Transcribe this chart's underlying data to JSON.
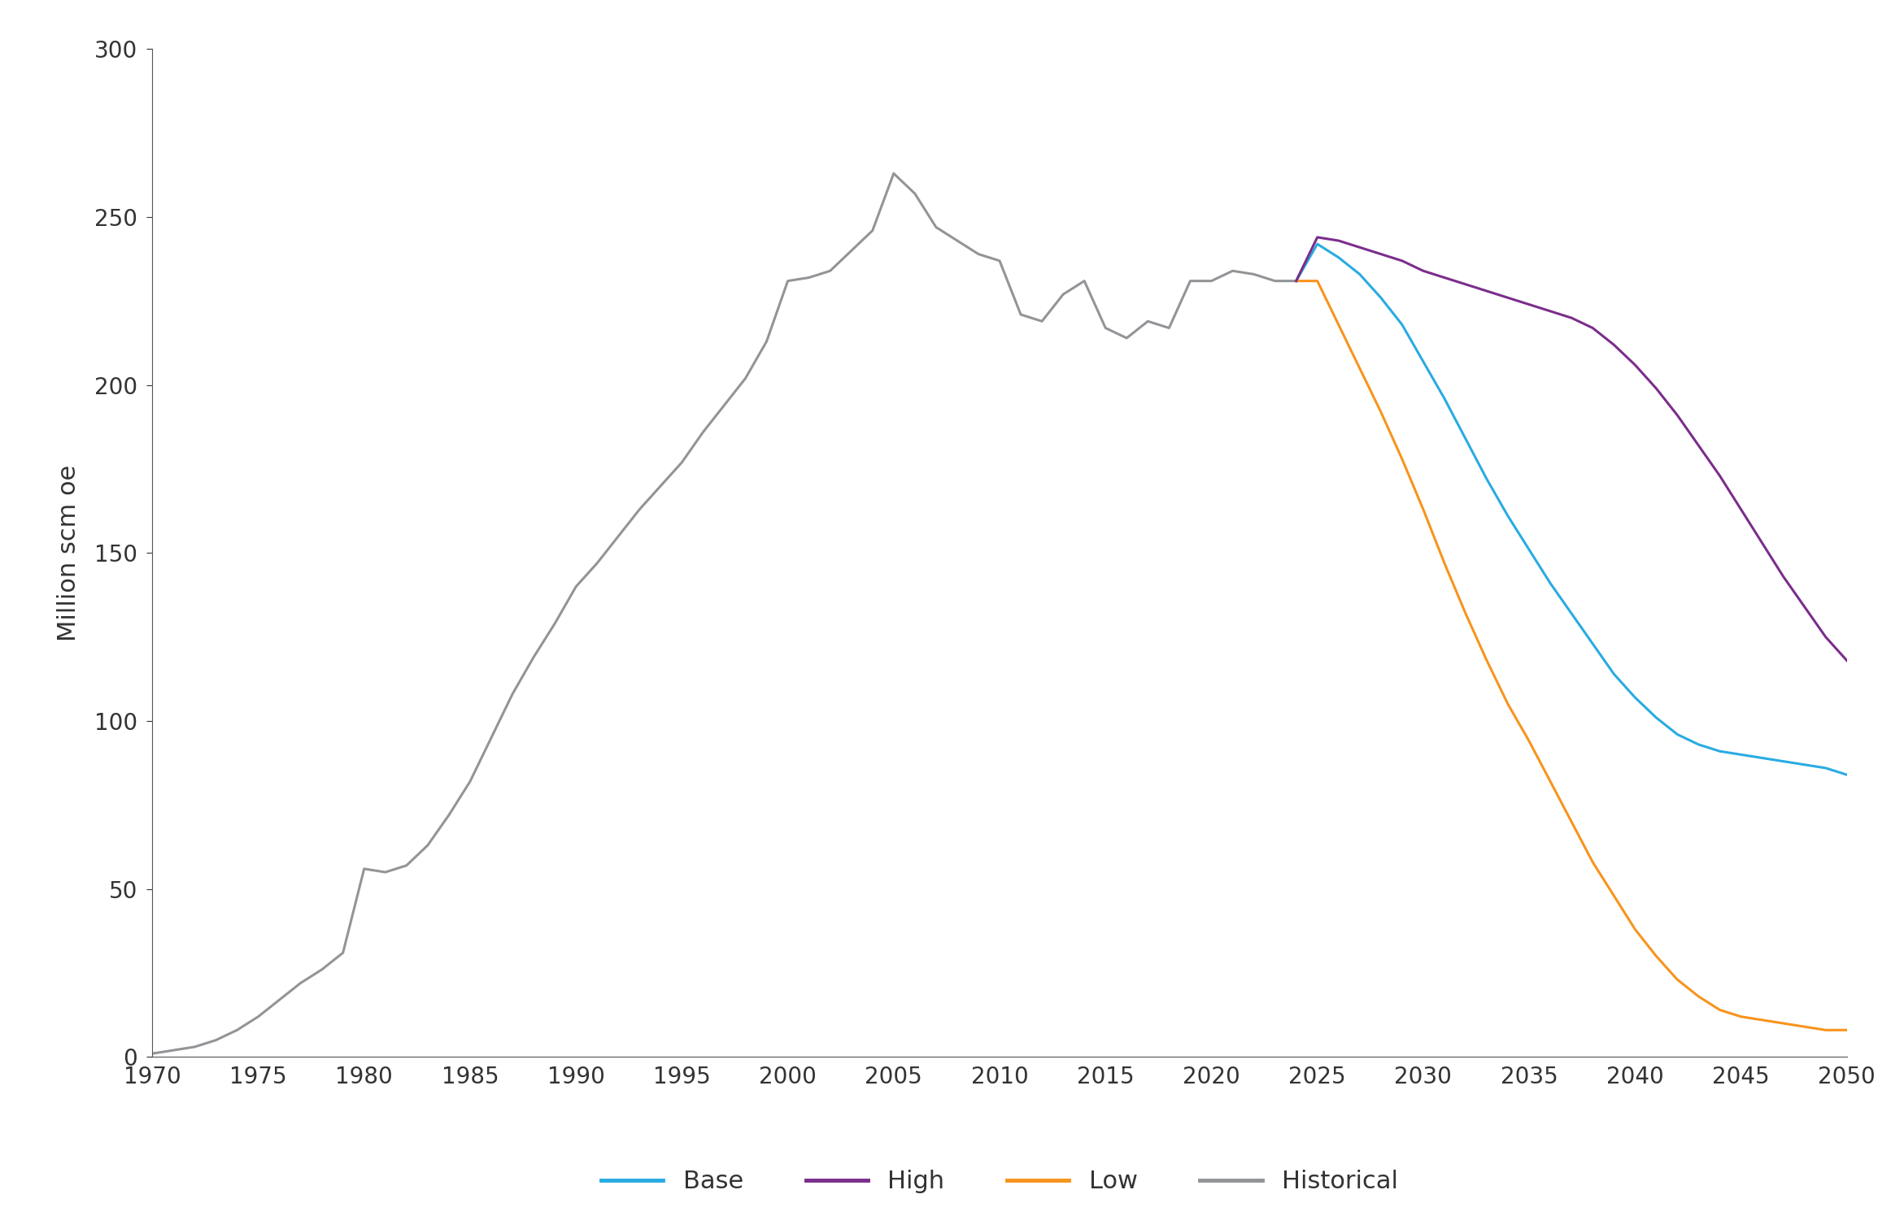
{
  "title": "",
  "ylabel": "Million scm oe",
  "xlim": [
    1970,
    2050
  ],
  "ylim": [
    0,
    300
  ],
  "yticks": [
    0,
    50,
    100,
    150,
    200,
    250,
    300
  ],
  "xticks": [
    1970,
    1975,
    1980,
    1985,
    1990,
    1995,
    2000,
    2005,
    2010,
    2015,
    2020,
    2025,
    2030,
    2035,
    2040,
    2045,
    2050
  ],
  "colors": {
    "base": "#29ABE2",
    "high": "#7B2D8B",
    "low": "#F7941D",
    "historical": "#929497"
  },
  "historical": {
    "years": [
      1970,
      1971,
      1972,
      1973,
      1974,
      1975,
      1976,
      1977,
      1978,
      1979,
      1980,
      1981,
      1982,
      1983,
      1984,
      1985,
      1986,
      1987,
      1988,
      1989,
      1990,
      1991,
      1992,
      1993,
      1994,
      1995,
      1996,
      1997,
      1998,
      1999,
      2000,
      2001,
      2002,
      2003,
      2004,
      2005,
      2006,
      2007,
      2008,
      2009,
      2010,
      2011,
      2012,
      2013,
      2014,
      2015,
      2016,
      2017,
      2018,
      2019,
      2020,
      2021,
      2022,
      2023,
      2024
    ],
    "values": [
      1,
      2,
      3,
      5,
      8,
      12,
      17,
      22,
      26,
      31,
      56,
      55,
      57,
      63,
      72,
      82,
      95,
      108,
      119,
      129,
      140,
      147,
      155,
      163,
      170,
      177,
      186,
      194,
      202,
      213,
      231,
      232,
      234,
      240,
      246,
      263,
      257,
      247,
      243,
      239,
      237,
      221,
      219,
      227,
      231,
      217,
      214,
      219,
      217,
      231,
      231,
      234,
      233,
      231,
      231
    ]
  },
  "base": {
    "years": [
      2024,
      2025,
      2026,
      2027,
      2028,
      2029,
      2030,
      2031,
      2032,
      2033,
      2034,
      2035,
      2036,
      2037,
      2038,
      2039,
      2040,
      2041,
      2042,
      2043,
      2044,
      2045,
      2046,
      2047,
      2048,
      2049,
      2050
    ],
    "values": [
      231,
      242,
      238,
      233,
      226,
      218,
      207,
      196,
      184,
      172,
      161,
      151,
      141,
      132,
      123,
      114,
      107,
      101,
      96,
      93,
      91,
      90,
      89,
      88,
      87,
      86,
      84
    ]
  },
  "high": {
    "years": [
      2024,
      2025,
      2026,
      2027,
      2028,
      2029,
      2030,
      2031,
      2032,
      2033,
      2034,
      2035,
      2036,
      2037,
      2038,
      2039,
      2040,
      2041,
      2042,
      2043,
      2044,
      2045,
      2046,
      2047,
      2048,
      2049,
      2050
    ],
    "values": [
      231,
      244,
      243,
      241,
      239,
      237,
      234,
      232,
      230,
      228,
      226,
      224,
      222,
      220,
      217,
      212,
      206,
      199,
      191,
      182,
      173,
      163,
      153,
      143,
      134,
      125,
      118
    ]
  },
  "low": {
    "years": [
      2024,
      2025,
      2026,
      2027,
      2028,
      2029,
      2030,
      2031,
      2032,
      2033,
      2034,
      2035,
      2036,
      2037,
      2038,
      2039,
      2040,
      2041,
      2042,
      2043,
      2044,
      2045,
      2046,
      2047,
      2048,
      2049,
      2050
    ],
    "values": [
      231,
      231,
      218,
      205,
      192,
      178,
      163,
      147,
      132,
      118,
      105,
      94,
      82,
      70,
      58,
      48,
      38,
      30,
      23,
      18,
      14,
      12,
      11,
      10,
      9,
      8,
      8
    ]
  },
  "legend_labels": [
    "Base",
    "High",
    "Low",
    "Historical"
  ],
  "legend_colors": [
    "#29ABE2",
    "#7B2D8B",
    "#F7941D",
    "#929497"
  ],
  "background_color": "#FFFFFF",
  "linewidth": 2.2
}
